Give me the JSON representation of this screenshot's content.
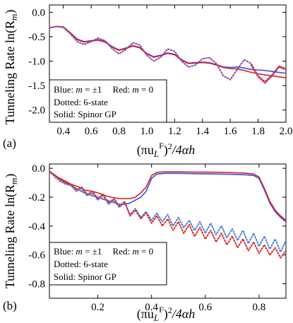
{
  "ylabel_shared": "Tunneling Rate ln(R",
  "ylabel_sub": "m",
  "ylabel_close": ")",
  "xlabel_parts": {
    "open": "(πu",
    "sub": "L",
    "sup": "F",
    "close": ")",
    "sq": "2",
    "rest": "/4αh"
  },
  "colors": {
    "blue": "#3b4fd8",
    "red": "#d42020",
    "dotted_blue": "#4a7fd8",
    "dotted_purple": "#8e3fa8",
    "dotted_red": "#e02828"
  },
  "chart_data": [
    {
      "type": "line",
      "panel_label": "(a)",
      "xlim": [
        0.3,
        2.0
      ],
      "ylim": [
        -2.25,
        0.15
      ],
      "xticks": [
        0.4,
        0.6,
        0.8,
        1.0,
        1.2,
        1.4,
        1.6,
        1.8,
        2.0
      ],
      "xtick_labels": [
        "0.4",
        "0.6",
        "0.8",
        "1.0",
        "1.2",
        "1.4",
        "1.6",
        "1.8",
        "2.0"
      ],
      "yticks": [
        0.0,
        -0.5,
        -1.0,
        -1.5,
        -2.0
      ],
      "ytick_labels": [
        "0.0",
        "-0.5",
        "-1.0",
        "-1.5",
        "-2.0"
      ],
      "legend": {
        "line1_blue": "Blue: ",
        "line1_m": "m",
        "line1_blue_val": " = ±1",
        "line1_red": "Red: ",
        "line1_red_val": " = 0",
        "line2": "Dotted: 6-state",
        "line3": "Solid: Spinor GP",
        "placement": "bottom-left"
      },
      "series": [
        {
          "style": "solid",
          "color": "blue",
          "x": [
            0.3,
            0.35,
            0.4,
            0.45,
            0.5,
            0.55,
            0.6,
            0.65,
            0.7,
            0.75,
            0.8,
            0.85,
            0.9,
            0.95,
            1.0,
            1.05,
            1.1,
            1.15,
            1.2,
            1.25,
            1.3,
            1.35,
            1.4,
            1.45,
            1.5,
            1.55,
            1.6,
            1.65,
            1.7,
            1.75,
            1.8,
            1.85,
            1.9,
            1.95,
            2.0
          ],
          "y": [
            -0.32,
            -0.29,
            -0.3,
            -0.42,
            -0.55,
            -0.6,
            -0.58,
            -0.56,
            -0.6,
            -0.7,
            -0.77,
            -0.73,
            -0.68,
            -0.72,
            -0.84,
            -0.91,
            -0.88,
            -0.83,
            -0.86,
            -0.97,
            -1.04,
            -1.03,
            -1.02,
            -1.03,
            -1.07,
            -1.12,
            -1.13,
            -1.12,
            -1.14,
            -1.17,
            -1.18,
            -1.19,
            -1.21,
            -1.23,
            -1.25
          ]
        },
        {
          "style": "solid",
          "color": "red",
          "x": [
            0.3,
            0.35,
            0.4,
            0.45,
            0.5,
            0.55,
            0.6,
            0.65,
            0.7,
            0.75,
            0.8,
            0.85,
            0.9,
            0.95,
            1.0,
            1.05,
            1.1,
            1.15,
            1.2,
            1.25,
            1.3,
            1.35,
            1.4,
            1.45,
            1.5,
            1.55,
            1.6,
            1.65,
            1.7,
            1.75,
            1.8,
            1.85,
            1.9,
            1.95,
            2.0
          ],
          "y": [
            -0.32,
            -0.29,
            -0.3,
            -0.42,
            -0.56,
            -0.61,
            -0.59,
            -0.57,
            -0.61,
            -0.71,
            -0.78,
            -0.74,
            -0.69,
            -0.73,
            -0.85,
            -0.92,
            -0.89,
            -0.84,
            -0.87,
            -0.98,
            -1.05,
            -1.04,
            -1.03,
            -1.04,
            -1.08,
            -1.13,
            -1.15,
            -1.16,
            -1.19,
            -1.23,
            -1.26,
            -1.28,
            -1.3,
            -1.32,
            -1.34
          ]
        },
        {
          "style": "dotted",
          "color": "dotted_purple",
          "x": [
            0.3,
            0.35,
            0.4,
            0.45,
            0.5,
            0.55,
            0.6,
            0.65,
            0.7,
            0.75,
            0.8,
            0.85,
            0.9,
            0.95,
            1.0,
            1.05,
            1.1,
            1.15,
            1.2,
            1.25,
            1.3,
            1.35,
            1.4,
            1.45,
            1.5,
            1.55,
            1.6,
            1.65,
            1.7,
            1.75,
            1.8,
            1.85,
            1.9,
            1.95,
            2.0
          ],
          "y": [
            -0.32,
            -0.29,
            -0.31,
            -0.44,
            -0.6,
            -0.66,
            -0.6,
            -0.53,
            -0.58,
            -0.74,
            -0.85,
            -0.76,
            -0.62,
            -0.67,
            -0.88,
            -1.0,
            -0.92,
            -0.75,
            -0.8,
            -1.0,
            -1.12,
            -1.08,
            -0.95,
            -0.93,
            -1.05,
            -1.3,
            -1.38,
            -1.17,
            -0.97,
            -1.05,
            -1.3,
            -1.42,
            -1.28,
            -1.1,
            -1.15
          ]
        },
        {
          "style": "dotted",
          "color": "dotted_red",
          "x": [
            1.75,
            1.8,
            1.85,
            1.9,
            1.95,
            2.0
          ],
          "y": [
            -1.08,
            -1.32,
            -1.45,
            -1.3,
            -1.12,
            -1.18
          ]
        }
      ]
    },
    {
      "type": "line",
      "panel_label": "(b)",
      "xlim": [
        0.02,
        0.9
      ],
      "ylim": [
        -0.9,
        0.03
      ],
      "xticks": [
        0.2,
        0.4,
        0.6,
        0.8
      ],
      "xtick_labels": [
        "0.2",
        "0.4",
        "0.6",
        "0.8"
      ],
      "yticks": [
        0.0,
        -0.2,
        -0.4,
        -0.6,
        -0.8
      ],
      "ytick_labels": [
        "0.0",
        "-0.2",
        "-0.4",
        "-0.6",
        "-0.8"
      ],
      "legend": {
        "line1_blue": "Blue: ",
        "line1_m": "m",
        "line1_blue_val": " = ±1",
        "line1_red": "Red: ",
        "line1_red_val": " = 0",
        "line2": "Dotted: 6-state",
        "line3": "Solid: Spinor GP",
        "placement": "bottom-left"
      },
      "series": [
        {
          "style": "solid",
          "color": "blue",
          "x": [
            0.02,
            0.05,
            0.08,
            0.1,
            0.13,
            0.15,
            0.18,
            0.2,
            0.23,
            0.25,
            0.28,
            0.3,
            0.32,
            0.34,
            0.36,
            0.38,
            0.4,
            0.42,
            0.45,
            0.5,
            0.55,
            0.6,
            0.65,
            0.7,
            0.75,
            0.78,
            0.8,
            0.82,
            0.84,
            0.86,
            0.88,
            0.9
          ],
          "y": [
            -0.02,
            -0.06,
            -0.1,
            -0.12,
            -0.15,
            -0.17,
            -0.19,
            -0.2,
            -0.22,
            -0.23,
            -0.25,
            -0.25,
            -0.24,
            -0.22,
            -0.2,
            -0.16,
            -0.07,
            -0.04,
            -0.035,
            -0.035,
            -0.037,
            -0.038,
            -0.04,
            -0.042,
            -0.045,
            -0.05,
            -0.07,
            -0.15,
            -0.24,
            -0.3,
            -0.34,
            -0.37
          ]
        },
        {
          "style": "solid",
          "color": "red",
          "x": [
            0.02,
            0.05,
            0.08,
            0.1,
            0.13,
            0.15,
            0.18,
            0.2,
            0.23,
            0.25,
            0.28,
            0.3,
            0.32,
            0.34,
            0.36,
            0.38,
            0.4,
            0.42,
            0.45,
            0.5,
            0.55,
            0.6,
            0.65,
            0.7,
            0.75,
            0.78,
            0.8,
            0.82,
            0.84,
            0.86,
            0.88,
            0.9
          ],
          "y": [
            -0.02,
            -0.06,
            -0.09,
            -0.11,
            -0.13,
            -0.15,
            -0.16,
            -0.17,
            -0.19,
            -0.2,
            -0.21,
            -0.21,
            -0.21,
            -0.2,
            -0.17,
            -0.13,
            -0.05,
            -0.028,
            -0.025,
            -0.025,
            -0.026,
            -0.027,
            -0.028,
            -0.03,
            -0.033,
            -0.04,
            -0.06,
            -0.14,
            -0.23,
            -0.29,
            -0.33,
            -0.36
          ]
        },
        {
          "style": "dotted",
          "color": "dotted_blue",
          "x": [
            0.02,
            0.04,
            0.06,
            0.08,
            0.1,
            0.12,
            0.14,
            0.16,
            0.18,
            0.2,
            0.22,
            0.24,
            0.26,
            0.28,
            0.3,
            0.32,
            0.34,
            0.36,
            0.38,
            0.4,
            0.42,
            0.44,
            0.46,
            0.48,
            0.5,
            0.52,
            0.54,
            0.56,
            0.58,
            0.6,
            0.62,
            0.64,
            0.66,
            0.68,
            0.7,
            0.72,
            0.74,
            0.76,
            0.78,
            0.8,
            0.82,
            0.84,
            0.86,
            0.88,
            0.9
          ],
          "y": [
            -0.02,
            -0.06,
            -0.09,
            -0.11,
            -0.12,
            -0.16,
            -0.14,
            -0.19,
            -0.17,
            -0.22,
            -0.19,
            -0.25,
            -0.22,
            -0.27,
            -0.24,
            -0.32,
            -0.28,
            -0.34,
            -0.3,
            -0.36,
            -0.31,
            -0.37,
            -0.32,
            -0.4,
            -0.34,
            -0.41,
            -0.36,
            -0.43,
            -0.37,
            -0.45,
            -0.38,
            -0.46,
            -0.4,
            -0.48,
            -0.42,
            -0.5,
            -0.43,
            -0.52,
            -0.45,
            -0.54,
            -0.47,
            -0.56,
            -0.49,
            -0.58,
            -0.5
          ]
        },
        {
          "style": "dotted",
          "color": "dotted_red",
          "x": [
            0.02,
            0.04,
            0.06,
            0.08,
            0.1,
            0.12,
            0.14,
            0.16,
            0.18,
            0.2,
            0.22,
            0.24,
            0.26,
            0.28,
            0.3,
            0.32,
            0.34,
            0.36,
            0.38,
            0.4,
            0.42,
            0.44,
            0.46,
            0.48,
            0.5,
            0.52,
            0.54,
            0.56,
            0.58,
            0.6,
            0.62,
            0.64,
            0.66,
            0.68,
            0.7,
            0.72,
            0.74,
            0.76,
            0.78,
            0.8,
            0.82,
            0.84,
            0.86,
            0.88,
            0.9
          ],
          "y": [
            -0.02,
            -0.05,
            -0.08,
            -0.1,
            -0.11,
            -0.15,
            -0.13,
            -0.18,
            -0.16,
            -0.21,
            -0.18,
            -0.24,
            -0.21,
            -0.26,
            -0.23,
            -0.33,
            -0.29,
            -0.35,
            -0.31,
            -0.38,
            -0.33,
            -0.4,
            -0.35,
            -0.43,
            -0.37,
            -0.45,
            -0.39,
            -0.47,
            -0.41,
            -0.49,
            -0.43,
            -0.51,
            -0.45,
            -0.53,
            -0.47,
            -0.55,
            -0.49,
            -0.57,
            -0.51,
            -0.59,
            -0.53,
            -0.6,
            -0.55,
            -0.62,
            -0.57
          ]
        }
      ]
    }
  ]
}
